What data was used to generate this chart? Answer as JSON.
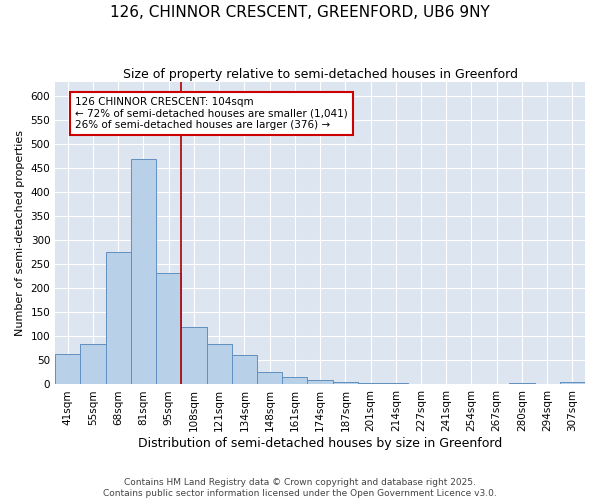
{
  "title": "126, CHINNOR CRESCENT, GREENFORD, UB6 9NY",
  "subtitle": "Size of property relative to semi-detached houses in Greenford",
  "xlabel": "Distribution of semi-detached houses by size in Greenford",
  "ylabel": "Number of semi-detached properties",
  "categories": [
    "41sqm",
    "55sqm",
    "68sqm",
    "81sqm",
    "95sqm",
    "108sqm",
    "121sqm",
    "134sqm",
    "148sqm",
    "161sqm",
    "174sqm",
    "187sqm",
    "201sqm",
    "214sqm",
    "227sqm",
    "241sqm",
    "254sqm",
    "267sqm",
    "280sqm",
    "294sqm",
    "307sqm"
  ],
  "values": [
    63,
    84,
    275,
    470,
    232,
    120,
    85,
    62,
    25,
    15,
    10,
    5,
    4,
    3,
    1,
    1,
    0,
    0,
    4,
    0,
    5
  ],
  "bar_color": "#b8d0e8",
  "bar_edge_color": "#6090c0",
  "vline_color": "#aa0000",
  "annotation_text": "126 CHINNOR CRESCENT: 104sqm\n← 72% of semi-detached houses are smaller (1,041)\n26% of semi-detached houses are larger (376) →",
  "annotation_box_color": "#ffffff",
  "annotation_box_edge_color": "#cc0000",
  "ylim": [
    0,
    630
  ],
  "yticks": [
    0,
    50,
    100,
    150,
    200,
    250,
    300,
    350,
    400,
    450,
    500,
    550,
    600
  ],
  "background_color": "#dde6f0",
  "grid_color": "#ffffff",
  "footer_text": "Contains HM Land Registry data © Crown copyright and database right 2025.\nContains public sector information licensed under the Open Government Licence v3.0.",
  "title_fontsize": 11,
  "subtitle_fontsize": 9,
  "xlabel_fontsize": 9,
  "ylabel_fontsize": 8,
  "tick_fontsize": 7.5,
  "annotation_fontsize": 7.5,
  "footer_fontsize": 6.5
}
